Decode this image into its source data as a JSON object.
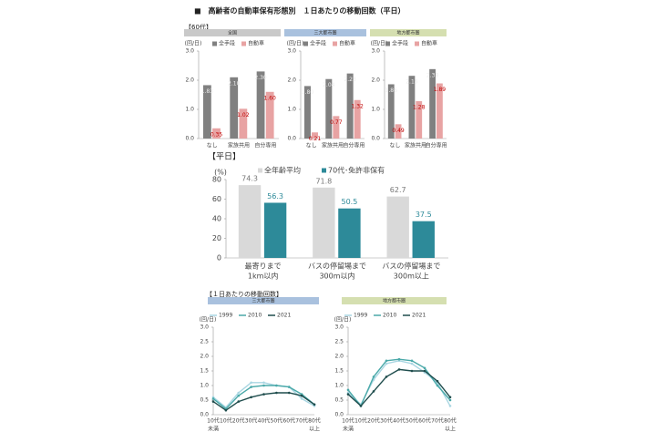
{
  "title": "■　高齢者の自動車保有形態別　１日あたりの移動回数（平日）",
  "section_labels": [
    "【60代】",
    "【平日】",
    "【１日あたりの移動回数】"
  ],
  "chart_data": [
    {
      "type": "bar",
      "title": "全国",
      "header_color": "#c9c9c9",
      "y_label": "(回/日)",
      "categories": [
        "なし",
        "家族共用",
        "自分専用"
      ],
      "series": [
        {
          "name": "全手段",
          "color": "#808080",
          "values": [
            1.83,
            2.1,
            2.3
          ],
          "value_labels": [
            "1.83",
            "2.10",
            "2.30"
          ]
        },
        {
          "name": "自動車",
          "color": "#e8a3a3",
          "values": [
            0.35,
            1.02,
            1.6
          ],
          "value_labels": [
            "0.35",
            "1.02",
            "1.60"
          ]
        }
      ],
      "ylim": [
        0,
        3
      ],
      "yticks": [
        {
          "value": 0,
          "label": "0.0"
        },
        {
          "value": 1,
          "label": "1.0"
        },
        {
          "value": 2,
          "label": "2.0"
        },
        {
          "value": 3,
          "label": "3.0"
        }
      ]
    },
    {
      "type": "bar",
      "title": "三大都市圏",
      "header_color": "#a9c1de",
      "y_label": "(回/日)",
      "categories": [
        "なし",
        "家族共用",
        "自分専用"
      ],
      "series": [
        {
          "name": "全手段",
          "color": "#808080",
          "values": [
            1.8,
            2.04,
            2.23
          ],
          "value_labels": [
            "1.80",
            "2.04",
            "2.23"
          ]
        },
        {
          "name": "自動車",
          "color": "#e8a3a3",
          "values": [
            0.21,
            0.77,
            1.32
          ],
          "value_labels": [
            "0.21",
            "0.77",
            "1.32"
          ]
        }
      ],
      "ylim": [
        0,
        3
      ],
      "yticks": [
        {
          "value": 0,
          "label": "0.0"
        },
        {
          "value": 1,
          "label": "1.0"
        },
        {
          "value": 2,
          "label": "2.0"
        },
        {
          "value": 3,
          "label": "3.0"
        }
      ]
    },
    {
      "type": "bar",
      "title": "地方都市圏",
      "header_color": "#d5dfb0",
      "y_label": "(回/日)",
      "categories": [
        "なし",
        "家族共用",
        "自分専用"
      ],
      "series": [
        {
          "name": "全手段",
          "color": "#808080",
          "values": [
            1.86,
            2.15,
            2.38
          ],
          "value_labels": [
            "1.86",
            "2.15",
            "2.38"
          ]
        },
        {
          "name": "自動車",
          "color": "#e8a3a3",
          "values": [
            0.49,
            1.28,
            1.89
          ],
          "value_labels": [
            "0.49",
            "1.28",
            "1.89"
          ]
        }
      ],
      "ylim": [
        0,
        3
      ],
      "yticks": [
        {
          "value": 0,
          "label": "0.0"
        },
        {
          "value": 1,
          "label": "1.0"
        },
        {
          "value": 2,
          "label": "2.0"
        },
        {
          "value": 3,
          "label": "3.0"
        }
      ]
    },
    {
      "type": "bar",
      "y_label": "(%)",
      "categories": [
        [
          "最寄りまで",
          "1km以内"
        ],
        [
          "バスの停留場まで",
          "300m以内"
        ],
        [
          "バスの停留場まで",
          "300m以上"
        ]
      ],
      "series": [
        {
          "name": "全年齢平均",
          "color": "#d9d9d9",
          "values": [
            74.3,
            71.8,
            62.7
          ]
        },
        {
          "name": "70代･免許非保有",
          "color": "#2d8a99",
          "values": [
            56.3,
            50.5,
            37.5
          ]
        }
      ],
      "ylim": [
        0,
        80
      ],
      "yticks": [
        0,
        20,
        40,
        60,
        80
      ]
    },
    {
      "type": "line",
      "title": "三大都市圏",
      "header_color": "#a9c1de",
      "y_label": "(回/日)",
      "categories": [
        [
          "10代",
          "未満"
        ],
        [
          "10代"
        ],
        [
          "20代"
        ],
        [
          "30代"
        ],
        [
          "40代"
        ],
        [
          "50代"
        ],
        [
          "60代"
        ],
        [
          "70代"
        ],
        [
          "80代",
          "以上"
        ]
      ],
      "series": [
        {
          "name": "1999",
          "color": "#a9d6e2",
          "values": [
            0.6,
            0.25,
            0.75,
            1.1,
            1.1,
            1.0,
            0.95,
            0.55,
            0.3
          ]
        },
        {
          "name": "2010",
          "color": "#4aa9a9",
          "values": [
            0.55,
            0.2,
            0.65,
            0.95,
            1.0,
            1.0,
            0.95,
            0.7,
            0.35
          ]
        },
        {
          "name": "2021",
          "color": "#1f4d4d",
          "values": [
            0.45,
            0.15,
            0.45,
            0.6,
            0.7,
            0.75,
            0.75,
            0.65,
            0.35
          ]
        }
      ],
      "ylim": [
        0,
        3
      ],
      "yticks": [
        {
          "value": 0,
          "label": "0.0"
        },
        {
          "value": 0.5,
          "label": "0.5"
        },
        {
          "value": 1,
          "label": "1.0"
        },
        {
          "value": 1.5,
          "label": "1.5"
        },
        {
          "value": 2,
          "label": "2.0"
        },
        {
          "value": 2.5,
          "label": "2.5"
        },
        {
          "value": 3,
          "label": "3.0"
        }
      ]
    },
    {
      "type": "line",
      "title": "地方都市圏",
      "header_color": "#d5dfb0",
      "y_label": "(回/日)",
      "categories": [
        [
          "10代",
          "未満"
        ],
        [
          "10代"
        ],
        [
          "20代"
        ],
        [
          "30代"
        ],
        [
          "40代"
        ],
        [
          "50代"
        ],
        [
          "60代"
        ],
        [
          "70代"
        ],
        [
          "80代",
          "以上"
        ]
      ],
      "series": [
        {
          "name": "1999",
          "color": "#a9d6e2",
          "values": [
            0.75,
            0.35,
            1.2,
            1.75,
            1.85,
            1.75,
            1.45,
            1.1,
            0.3
          ]
        },
        {
          "name": "2010",
          "color": "#4aa9a9",
          "values": [
            0.85,
            0.3,
            1.3,
            1.85,
            1.9,
            1.85,
            1.6,
            1.0,
            0.5
          ]
        },
        {
          "name": "2021",
          "color": "#1f4d4d",
          "values": [
            0.7,
            0.3,
            0.8,
            1.3,
            1.55,
            1.5,
            1.5,
            1.15,
            0.6
          ]
        }
      ],
      "ylim": [
        0,
        3
      ],
      "yticks": [
        {
          "value": 0,
          "label": "0.0"
        },
        {
          "value": 0.5,
          "label": "0.5"
        },
        {
          "value": 1,
          "label": "1.0"
        },
        {
          "value": 1.5,
          "label": "1.5"
        },
        {
          "value": 2,
          "label": "2.0"
        },
        {
          "value": 2.5,
          "label": "2.5"
        },
        {
          "value": 3,
          "label": "3.0"
        }
      ]
    }
  ]
}
